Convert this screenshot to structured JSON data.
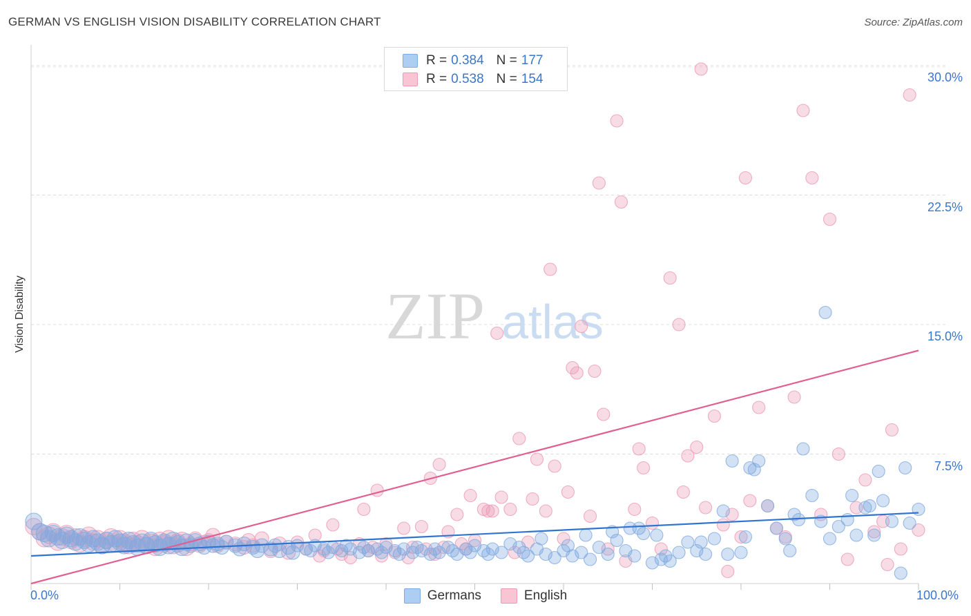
{
  "title": "GERMAN VS ENGLISH VISION DISABILITY CORRELATION CHART",
  "source": "Source: ZipAtlas.com",
  "watermark": {
    "part1": "ZIP",
    "part2": "atlas"
  },
  "legend": {
    "rows": [
      {
        "r_label": "R =",
        "r_value": "0.384",
        "n_label": "N =",
        "n_value": "177",
        "color": "#aecdf2",
        "border": "#7fa9e0"
      },
      {
        "r_label": "R =",
        "r_value": "0.538",
        "n_label": "N =",
        "n_value": "154",
        "color": "#f9c5d5",
        "border": "#ec9ab4"
      }
    ]
  },
  "bottom_legend": [
    "Germans",
    "English"
  ],
  "colors": {
    "germans": "#7fa9e0",
    "english": "#ec9ab4",
    "germans_line": "#2f74d0",
    "english_line": "#e05f8f",
    "axis_text": "#3a76cc"
  },
  "chart_data": {
    "type": "scatter",
    "title": "GERMAN VS ENGLISH VISION DISABILITY CORRELATION CHART",
    "xlabel": "",
    "ylabel": "Vision Disability",
    "xlim": [
      0,
      100
    ],
    "ylim": [
      0,
      31
    ],
    "x_tick_labels": [
      "0.0%",
      "100.0%"
    ],
    "y_tick_labels": [
      "7.5%",
      "15.0%",
      "22.5%",
      "30.0%"
    ],
    "y_ticks": [
      7.5,
      15.0,
      22.5,
      30.0
    ],
    "grid": true,
    "legend_position": "top-center",
    "series": [
      {
        "name": "Germans",
        "trend": [
          [
            0,
            1.6
          ],
          [
            100,
            4.1
          ]
        ],
        "points": [
          [
            0.3,
            3.6
          ],
          [
            1,
            3.0
          ],
          [
            1.5,
            2.9
          ],
          [
            2,
            2.6
          ],
          [
            2.5,
            2.9
          ],
          [
            3,
            2.7
          ],
          [
            3.5,
            2.5
          ],
          [
            4,
            2.8
          ],
          [
            4.5,
            2.6
          ],
          [
            5,
            2.4
          ],
          [
            5.5,
            2.7
          ],
          [
            6,
            2.5
          ],
          [
            6.5,
            2.3
          ],
          [
            7,
            2.6
          ],
          [
            7.5,
            2.4
          ],
          [
            8,
            2.2
          ],
          [
            8.5,
            2.5
          ],
          [
            9,
            2.3
          ],
          [
            9.5,
            2.6
          ],
          [
            10,
            2.4
          ],
          [
            10.5,
            2.2
          ],
          [
            11,
            2.5
          ],
          [
            11.5,
            2.3
          ],
          [
            12,
            2.1
          ],
          [
            12.5,
            2.4
          ],
          [
            13,
            2.2
          ],
          [
            13.5,
            2.5
          ],
          [
            14,
            2.3
          ],
          [
            14.5,
            2.1
          ],
          [
            15,
            2.4
          ],
          [
            15.5,
            2.2
          ],
          [
            16,
            2.5
          ],
          [
            16.5,
            2.3
          ],
          [
            17,
            2.1
          ],
          [
            17.5,
            2.4
          ],
          [
            18,
            2.2
          ],
          [
            18.5,
            2.5
          ],
          [
            19,
            2.3
          ],
          [
            19.5,
            2.1
          ],
          [
            20,
            2.4
          ],
          [
            20.5,
            2.2
          ],
          [
            21,
            2.3
          ],
          [
            21.5,
            2.1
          ],
          [
            22,
            2.4
          ],
          [
            23,
            2.2
          ],
          [
            23.5,
            2.0
          ],
          [
            24,
            2.3
          ],
          [
            25,
            2.1
          ],
          [
            25.5,
            1.9
          ],
          [
            26,
            2.2
          ],
          [
            27,
            2.0
          ],
          [
            27.5,
            2.2
          ],
          [
            28,
            1.9
          ],
          [
            29,
            2.1
          ],
          [
            29.5,
            1.8
          ],
          [
            30,
            2.2
          ],
          [
            31,
            2.0
          ],
          [
            31.5,
            1.9
          ],
          [
            32,
            2.2
          ],
          [
            33,
            2.0
          ],
          [
            33.5,
            1.8
          ],
          [
            34,
            2.1
          ],
          [
            35,
            1.9
          ],
          [
            35.5,
            2.2
          ],
          [
            36,
            2.0
          ],
          [
            37,
            1.8
          ],
          [
            37.5,
            2.1
          ],
          [
            38,
            1.9
          ],
          [
            39,
            2.0
          ],
          [
            39.5,
            1.8
          ],
          [
            40,
            2.1
          ],
          [
            41,
            1.9
          ],
          [
            41.5,
            1.7
          ],
          [
            42,
            2.0
          ],
          [
            43,
            1.8
          ],
          [
            43.5,
            2.1
          ],
          [
            44,
            1.9
          ],
          [
            45,
            1.7
          ],
          [
            45.5,
            2.0
          ],
          [
            46,
            1.8
          ],
          [
            47,
            2.1
          ],
          [
            47.5,
            1.9
          ],
          [
            48,
            1.7
          ],
          [
            49,
            2.0
          ],
          [
            49.5,
            1.8
          ],
          [
            50,
            2.2
          ],
          [
            51,
            1.9
          ],
          [
            51.5,
            1.7
          ],
          [
            52,
            2.0
          ],
          [
            53,
            1.8
          ],
          [
            54,
            2.3
          ],
          [
            55,
            2.1
          ],
          [
            55.5,
            1.8
          ],
          [
            56,
            1.6
          ],
          [
            57,
            2.0
          ],
          [
            57.5,
            2.6
          ],
          [
            58,
            1.7
          ],
          [
            59,
            1.5
          ],
          [
            60,
            1.9
          ],
          [
            60.5,
            2.2
          ],
          [
            61,
            1.6
          ],
          [
            62,
            1.8
          ],
          [
            62.5,
            2.8
          ],
          [
            63,
            1.4
          ],
          [
            64,
            2.1
          ],
          [
            65,
            1.7
          ],
          [
            65.5,
            3.0
          ],
          [
            66,
            2.5
          ],
          [
            67,
            1.9
          ],
          [
            67.5,
            3.2
          ],
          [
            68,
            1.6
          ],
          [
            68.5,
            3.2
          ],
          [
            69,
            2.9
          ],
          [
            70,
            1.2
          ],
          [
            70.5,
            2.8
          ],
          [
            71,
            1.4
          ],
          [
            71.5,
            1.6
          ],
          [
            72,
            1.3
          ],
          [
            73,
            1.8
          ],
          [
            74,
            2.4
          ],
          [
            75,
            1.9
          ],
          [
            75.5,
            2.4
          ],
          [
            76,
            1.7
          ],
          [
            77,
            2.6
          ],
          [
            78,
            4.2
          ],
          [
            78.5,
            1.7
          ],
          [
            79,
            7.1
          ],
          [
            80,
            1.8
          ],
          [
            80.5,
            2.7
          ],
          [
            81,
            6.7
          ],
          [
            81.5,
            6.6
          ],
          [
            82,
            7.1
          ],
          [
            83,
            4.5
          ],
          [
            84,
            3.2
          ],
          [
            85,
            2.6
          ],
          [
            85.5,
            1.9
          ],
          [
            86,
            4.0
          ],
          [
            86.5,
            3.7
          ],
          [
            87,
            7.8
          ],
          [
            88,
            5.1
          ],
          [
            89,
            3.6
          ],
          [
            89.5,
            15.7
          ],
          [
            90,
            2.6
          ],
          [
            91,
            3.3
          ],
          [
            92,
            3.7
          ],
          [
            92.5,
            5.1
          ],
          [
            93,
            2.8
          ],
          [
            94,
            4.4
          ],
          [
            94.5,
            4.5
          ],
          [
            95,
            2.8
          ],
          [
            95.5,
            6.5
          ],
          [
            96,
            4.8
          ],
          [
            97,
            3.6
          ],
          [
            98,
            0.6
          ],
          [
            98.5,
            6.7
          ],
          [
            99,
            3.5
          ],
          [
            100,
            4.3
          ]
        ]
      },
      {
        "name": "English",
        "trend": [
          [
            0,
            0
          ],
          [
            100,
            13.5
          ]
        ],
        "points": [
          [
            0.3,
            3.3
          ],
          [
            1,
            3.0
          ],
          [
            1.5,
            2.6
          ],
          [
            2,
            2.8
          ],
          [
            2.5,
            3.0
          ],
          [
            3,
            2.4
          ],
          [
            3.5,
            2.7
          ],
          [
            4,
            2.9
          ],
          [
            4.5,
            2.5
          ],
          [
            5,
            2.7
          ],
          [
            5.5,
            2.3
          ],
          [
            6,
            2.6
          ],
          [
            6.5,
            2.8
          ],
          [
            7,
            2.4
          ],
          [
            7.5,
            2.6
          ],
          [
            8,
            2.2
          ],
          [
            8.5,
            2.5
          ],
          [
            9,
            2.7
          ],
          [
            9.5,
            2.3
          ],
          [
            10,
            2.6
          ],
          [
            10.5,
            2.4
          ],
          [
            11,
            2.2
          ],
          [
            11.5,
            2.5
          ],
          [
            12,
            2.3
          ],
          [
            12.5,
            2.6
          ],
          [
            13,
            2.2
          ],
          [
            13.5,
            2.4
          ],
          [
            14,
            2.1
          ],
          [
            14.5,
            2.5
          ],
          [
            15,
            2.3
          ],
          [
            15.5,
            2.6
          ],
          [
            16,
            2.2
          ],
          [
            16.5,
            2.4
          ],
          [
            17,
            2.5
          ],
          [
            17.5,
            2.1
          ],
          [
            18,
            2.3
          ],
          [
            18.5,
            2.6
          ],
          [
            19,
            2.2
          ],
          [
            19.5,
            2.4
          ],
          [
            20,
            2.5
          ],
          [
            20.5,
            2.8
          ],
          [
            21,
            2.2
          ],
          [
            22,
            2.4
          ],
          [
            23,
            2.3
          ],
          [
            24,
            2.1
          ],
          [
            24.5,
            2.5
          ],
          [
            25,
            2.2
          ],
          [
            26,
            2.6
          ],
          [
            27,
            1.9
          ],
          [
            28,
            2.3
          ],
          [
            29,
            1.8
          ],
          [
            30,
            2.4
          ],
          [
            31,
            2.0
          ],
          [
            32,
            2.8
          ],
          [
            32.5,
            1.6
          ],
          [
            33,
            1.9
          ],
          [
            34,
            3.4
          ],
          [
            34.5,
            2.0
          ],
          [
            35,
            1.7
          ],
          [
            36,
            1.5
          ],
          [
            37,
            2.3
          ],
          [
            37.5,
            4.3
          ],
          [
            38,
            1.9
          ],
          [
            38.5,
            2.1
          ],
          [
            39,
            5.4
          ],
          [
            39.5,
            1.6
          ],
          [
            40,
            2.3
          ],
          [
            41,
            1.8
          ],
          [
            42,
            3.2
          ],
          [
            42.5,
            1.5
          ],
          [
            43,
            2.1
          ],
          [
            44,
            3.3
          ],
          [
            44.5,
            2.0
          ],
          [
            45,
            6.1
          ],
          [
            45.5,
            1.7
          ],
          [
            46,
            6.9
          ],
          [
            46.5,
            2.1
          ],
          [
            47,
            3.0
          ],
          [
            48,
            4.0
          ],
          [
            48.5,
            2.3
          ],
          [
            49,
            2.0
          ],
          [
            49.5,
            5.1
          ],
          [
            50,
            2.5
          ],
          [
            51,
            4.3
          ],
          [
            51.5,
            4.2
          ],
          [
            52,
            4.2
          ],
          [
            52.5,
            14.5
          ],
          [
            53,
            5.0
          ],
          [
            54,
            4.3
          ],
          [
            54.5,
            1.8
          ],
          [
            55,
            8.4
          ],
          [
            56,
            2.4
          ],
          [
            56.5,
            4.9
          ],
          [
            57,
            7.2
          ],
          [
            58,
            4.2
          ],
          [
            58.5,
            18.2
          ],
          [
            59,
            6.8
          ],
          [
            60,
            2.6
          ],
          [
            60.5,
            5.3
          ],
          [
            61,
            12.5
          ],
          [
            61.5,
            12.2
          ],
          [
            62,
            14.9
          ],
          [
            63,
            3.9
          ],
          [
            63.5,
            12.3
          ],
          [
            64,
            23.2
          ],
          [
            64.5,
            9.8
          ],
          [
            65,
            2.0
          ],
          [
            66,
            26.8
          ],
          [
            66.5,
            22.1
          ],
          [
            67,
            1.3
          ],
          [
            68,
            4.3
          ],
          [
            68.5,
            7.8
          ],
          [
            69,
            6.7
          ],
          [
            70,
            3.5
          ],
          [
            71,
            2.0
          ],
          [
            72,
            17.7
          ],
          [
            73,
            15.0
          ],
          [
            73.5,
            5.3
          ],
          [
            74,
            7.4
          ],
          [
            75,
            7.9
          ],
          [
            75.5,
            29.8
          ],
          [
            76,
            4.4
          ],
          [
            77,
            9.7
          ],
          [
            78,
            3.4
          ],
          [
            78.5,
            0.7
          ],
          [
            79,
            4.0
          ],
          [
            80,
            2.7
          ],
          [
            80.5,
            23.5
          ],
          [
            81,
            4.8
          ],
          [
            82,
            10.2
          ],
          [
            83,
            4.5
          ],
          [
            84,
            3.2
          ],
          [
            85,
            2.7
          ],
          [
            86,
            10.8
          ],
          [
            87,
            27.4
          ],
          [
            88,
            23.5
          ],
          [
            89,
            4.0
          ],
          [
            90,
            21.1
          ],
          [
            91,
            7.5
          ],
          [
            92,
            1.4
          ],
          [
            93,
            4.4
          ],
          [
            94,
            6.0
          ],
          [
            95,
            3.0
          ],
          [
            96,
            3.6
          ],
          [
            96.5,
            1.1
          ],
          [
            97,
            8.9
          ],
          [
            98,
            2.0
          ],
          [
            99,
            28.3
          ],
          [
            100,
            3.1
          ]
        ]
      }
    ]
  }
}
